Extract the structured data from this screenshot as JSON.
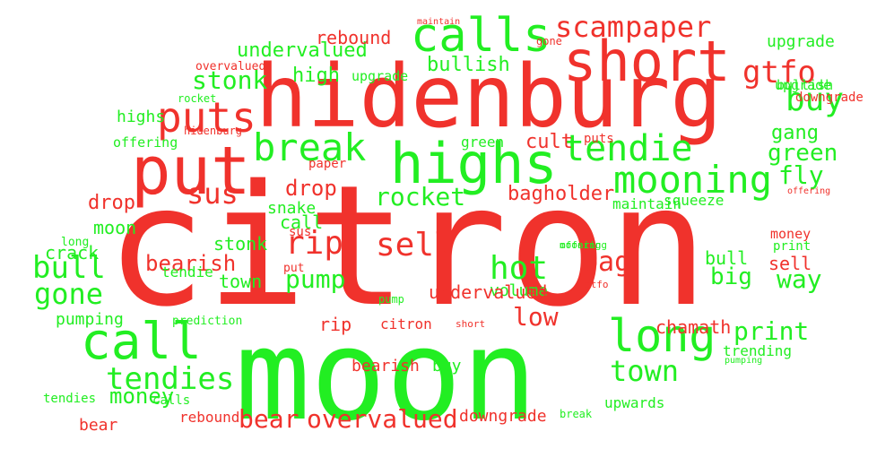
{
  "colors": {
    "red": "#f0322c",
    "green": "#22ee22"
  },
  "words": [
    {
      "text": "citron",
      "color": "red"
    },
    {
      "text": "moon",
      "color": "green"
    },
    {
      "text": "hidenburg",
      "color": "red"
    },
    {
      "text": "put",
      "color": "red"
    },
    {
      "text": "highs",
      "color": "green"
    },
    {
      "text": "short",
      "color": "red"
    },
    {
      "text": "calls",
      "color": "green"
    },
    {
      "text": "call",
      "color": "green"
    },
    {
      "text": "long",
      "color": "green"
    },
    {
      "text": "puts",
      "color": "red"
    },
    {
      "text": "mooning",
      "color": "green"
    },
    {
      "text": "tendie",
      "color": "green"
    },
    {
      "text": "break",
      "color": "green"
    },
    {
      "text": "buy",
      "color": "green"
    },
    {
      "text": "scam",
      "color": "red"
    },
    {
      "text": "paper",
      "color": "red"
    },
    {
      "text": "sus",
      "color": "red"
    },
    {
      "text": "sell",
      "color": "red"
    },
    {
      "text": "rip",
      "color": "red"
    },
    {
      "text": "hot",
      "color": "green"
    },
    {
      "text": "bull",
      "color": "green"
    },
    {
      "text": "gone",
      "color": "green"
    },
    {
      "text": "tendies",
      "color": "green"
    },
    {
      "text": "town",
      "color": "green"
    },
    {
      "text": "bear",
      "color": "red"
    },
    {
      "text": "overvalued",
      "color": "red"
    },
    {
      "text": "rocket",
      "color": "green"
    },
    {
      "text": "stonk",
      "color": "green"
    },
    {
      "text": "undervalued",
      "color": "green"
    },
    {
      "text": "bullish",
      "color": "green"
    },
    {
      "text": "gtfo",
      "color": "red"
    },
    {
      "text": "rebound",
      "color": "red"
    },
    {
      "text": "bearish",
      "color": "red"
    },
    {
      "text": "bag",
      "color": "red"
    },
    {
      "text": "pump",
      "color": "green"
    },
    {
      "text": "money",
      "color": "green"
    },
    {
      "text": "print",
      "color": "green"
    },
    {
      "text": "way",
      "color": "green"
    },
    {
      "text": "big",
      "color": "green"
    },
    {
      "text": "low",
      "color": "red"
    },
    {
      "text": "drop",
      "color": "red"
    },
    {
      "text": "fly",
      "color": "green"
    },
    {
      "text": "green",
      "color": "green"
    },
    {
      "text": "gang",
      "color": "green"
    },
    {
      "text": "cult",
      "color": "red"
    },
    {
      "text": "bagholder",
      "color": "red"
    },
    {
      "text": "volume",
      "color": "green"
    },
    {
      "text": "chamath",
      "color": "red"
    },
    {
      "text": "downgrade",
      "color": "red"
    },
    {
      "text": "upwards",
      "color": "green"
    },
    {
      "text": "crack",
      "color": "green"
    },
    {
      "text": "pumping",
      "color": "green"
    },
    {
      "text": "squeeze",
      "color": "green"
    },
    {
      "text": "maintain",
      "color": "green"
    },
    {
      "text": "offering",
      "color": "green"
    },
    {
      "text": "snake",
      "color": "green"
    },
    {
      "text": "prediction",
      "color": "green"
    },
    {
      "text": "trending",
      "color": "green"
    },
    {
      "text": "upgrade",
      "color": "green"
    },
    {
      "text": "high",
      "color": "green"
    },
    {
      "text": "overvalued",
      "color": "red"
    },
    {
      "text": "rocket",
      "color": "green"
    },
    {
      "text": "highs",
      "color": "green"
    },
    {
      "text": "offering",
      "color": "green"
    },
    {
      "text": "hidenburg",
      "color": "red"
    },
    {
      "text": "tendies",
      "color": "green"
    },
    {
      "text": "paper",
      "color": "red"
    },
    {
      "text": "drop",
      "color": "red"
    },
    {
      "text": "moon",
      "color": "green"
    },
    {
      "text": "long",
      "color": "green"
    },
    {
      "text": "stonk",
      "color": "green"
    },
    {
      "text": "call",
      "color": "green"
    },
    {
      "text": "sus",
      "color": "red"
    },
    {
      "text": "tendie",
      "color": "green"
    },
    {
      "text": "town",
      "color": "green"
    },
    {
      "text": "put",
      "color": "red"
    },
    {
      "text": "pump",
      "color": "green"
    },
    {
      "text": "undervalued",
      "color": "red"
    },
    {
      "text": "rip",
      "color": "red"
    },
    {
      "text": "citron",
      "color": "red"
    },
    {
      "text": "short",
      "color": "red"
    },
    {
      "text": "bearish",
      "color": "red"
    },
    {
      "text": "buy",
      "color": "green"
    },
    {
      "text": "bull",
      "color": "green"
    },
    {
      "text": "sell",
      "color": "red"
    },
    {
      "text": "gtfo",
      "color": "red"
    },
    {
      "text": "money",
      "color": "red"
    },
    {
      "text": "print",
      "color": "green"
    },
    {
      "text": "bear",
      "color": "red"
    },
    {
      "text": "mooning",
      "color": "green"
    },
    {
      "text": "offering",
      "color": "red"
    },
    {
      "text": "downgrade",
      "color": "red"
    },
    {
      "text": "bullish",
      "color": "green"
    },
    {
      "text": "upgrade",
      "color": "green"
    },
    {
      "text": "gone",
      "color": "red"
    },
    {
      "text": "maintain",
      "color": "red"
    },
    {
      "text": "upgrade",
      "color": "green"
    },
    {
      "text": "green",
      "color": "green"
    },
    {
      "text": "puts",
      "color": "red"
    },
    {
      "text": "calls",
      "color": "green"
    },
    {
      "text": "rebound",
      "color": "red"
    },
    {
      "text": "break",
      "color": "green"
    },
    {
      "text": "pumping",
      "color": "green"
    },
    {
      "text": "bagholder",
      "color": "red"
    }
  ]
}
